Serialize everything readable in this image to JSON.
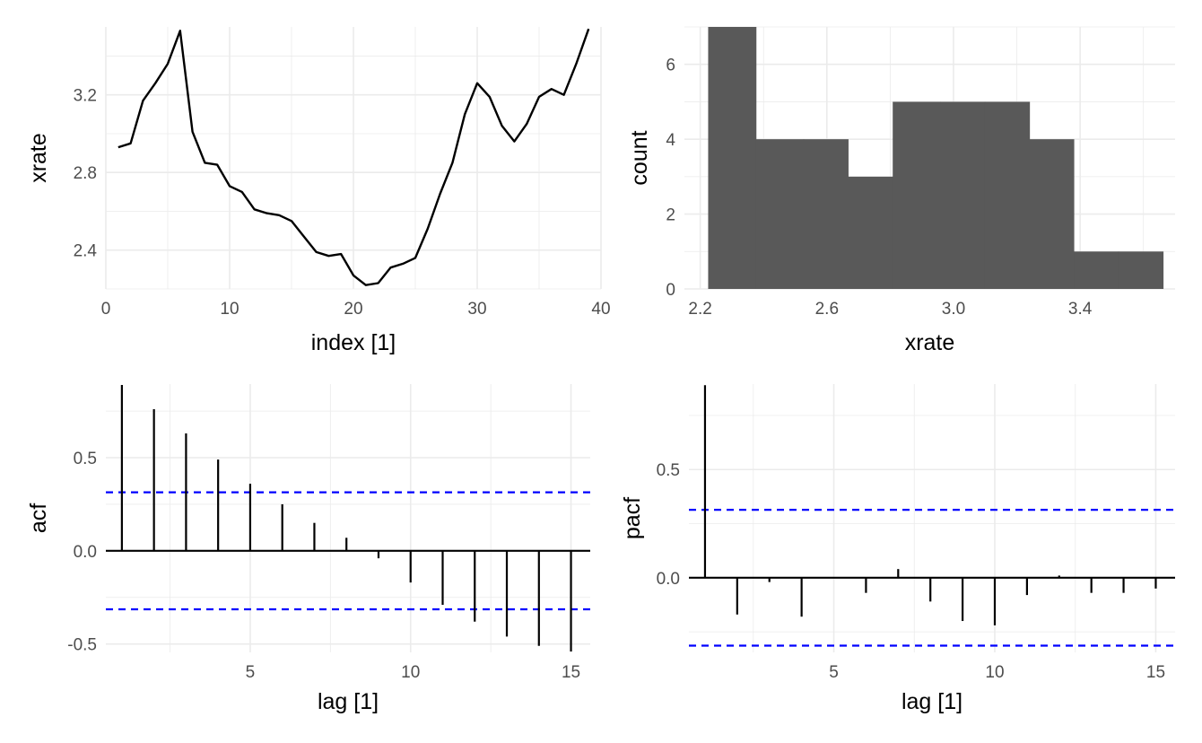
{
  "colors": {
    "line": "#000000",
    "bars": "#595959",
    "confidence_band": "#0000ff",
    "grid": "#ebebeb",
    "tick_text": "#4d4d4d"
  },
  "chart_data": [
    {
      "id": "series",
      "type": "line",
      "xlabel": "index [1]",
      "ylabel": "xrate",
      "xlim": [
        0,
        40
      ],
      "ylim": [
        2.2,
        3.55
      ],
      "xticks": [
        0,
        10,
        20,
        30,
        40
      ],
      "xtick_labels": [
        "0",
        "10",
        "20",
        "30",
        "40"
      ],
      "yticks": [
        2.4,
        2.8,
        3.2
      ],
      "ytick_labels": [
        "2.4",
        "2.8",
        "3.2"
      ],
      "grid": true,
      "x": [
        1,
        2,
        3,
        4,
        5,
        6,
        7,
        8,
        9,
        10,
        11,
        12,
        13,
        14,
        15,
        16,
        17,
        18,
        19,
        20,
        21,
        22,
        23,
        24,
        25,
        26,
        27,
        28,
        29,
        30,
        31,
        32,
        33,
        34,
        35,
        36,
        37,
        38,
        39
      ],
      "values": [
        2.93,
        2.95,
        3.17,
        3.26,
        3.36,
        3.53,
        3.01,
        2.85,
        2.84,
        2.73,
        2.7,
        2.61,
        2.59,
        2.58,
        2.55,
        2.47,
        2.39,
        2.37,
        2.38,
        2.27,
        2.22,
        2.23,
        2.31,
        2.33,
        2.36,
        2.51,
        2.69,
        2.85,
        3.1,
        3.26,
        3.19,
        3.04,
        2.96,
        3.05,
        3.19,
        3.23,
        3.2,
        3.36,
        3.54
      ]
    },
    {
      "id": "histogram",
      "type": "bar",
      "xlabel": "xrate",
      "ylabel": "count",
      "xlim": [
        2.15,
        3.7
      ],
      "ylim": [
        0,
        7
      ],
      "xticks": [
        2.2,
        2.6,
        3.0,
        3.4
      ],
      "xtick_labels": [
        "2.2",
        "2.6",
        "3.0",
        "3.4"
      ],
      "yticks": [
        0,
        2,
        4,
        6
      ],
      "ytick_labels": [
        "0",
        "2",
        "4",
        "6"
      ],
      "grid": true,
      "bins": [
        {
          "x0": 2.225,
          "x1": 2.376,
          "count": 7
        },
        {
          "x0": 2.376,
          "x1": 2.526,
          "count": 4
        },
        {
          "x0": 2.526,
          "x1": 2.667,
          "count": 4
        },
        {
          "x0": 2.667,
          "x1": 2.808,
          "count": 3
        },
        {
          "x0": 2.808,
          "x1": 2.958,
          "count": 5
        },
        {
          "x0": 2.958,
          "x1": 3.099,
          "count": 5
        },
        {
          "x0": 3.099,
          "x1": 3.24,
          "count": 5
        },
        {
          "x0": 3.24,
          "x1": 3.38,
          "count": 4
        },
        {
          "x0": 3.38,
          "x1": 3.521,
          "count": 1
        },
        {
          "x0": 3.521,
          "x1": 3.662,
          "count": 1
        }
      ]
    },
    {
      "id": "acf",
      "type": "bar",
      "xlabel": "lag [1]",
      "ylabel": "acf",
      "xlim": [
        0.5,
        15.6
      ],
      "ylim": [
        -0.545,
        0.895
      ],
      "xticks": [
        5,
        10,
        15
      ],
      "xtick_labels": [
        "5",
        "10",
        "15"
      ],
      "yticks": [
        -0.5,
        0.0,
        0.5
      ],
      "ytick_labels": [
        "-0.5",
        "0.0",
        "0.5"
      ],
      "grid": true,
      "confidence_limit": 0.314,
      "lags": [
        1,
        2,
        3,
        4,
        5,
        6,
        7,
        8,
        9,
        10,
        11,
        12,
        13,
        14,
        15
      ],
      "values": [
        0.89,
        0.76,
        0.63,
        0.49,
        0.36,
        0.25,
        0.15,
        0.07,
        -0.04,
        -0.17,
        -0.29,
        -0.38,
        -0.46,
        -0.51,
        -0.54
      ]
    },
    {
      "id": "pacf",
      "type": "bar",
      "xlabel": "lag [1]",
      "ylabel": "pacf",
      "xlim": [
        0.5,
        15.6
      ],
      "ylim": [
        -0.345,
        0.895
      ],
      "xticks": [
        5,
        10,
        15
      ],
      "xtick_labels": [
        "5",
        "10",
        "15"
      ],
      "yticks": [
        0.0,
        0.5
      ],
      "ytick_labels": [
        "0.0",
        "0.5"
      ],
      "grid": true,
      "confidence_limit": 0.314,
      "lags": [
        1,
        2,
        3,
        4,
        5,
        6,
        7,
        8,
        9,
        10,
        11,
        12,
        13,
        14,
        15
      ],
      "values": [
        0.89,
        -0.17,
        -0.02,
        -0.18,
        0.0,
        -0.07,
        0.04,
        -0.11,
        -0.2,
        -0.22,
        -0.08,
        0.01,
        -0.07,
        -0.07,
        -0.05
      ]
    }
  ]
}
